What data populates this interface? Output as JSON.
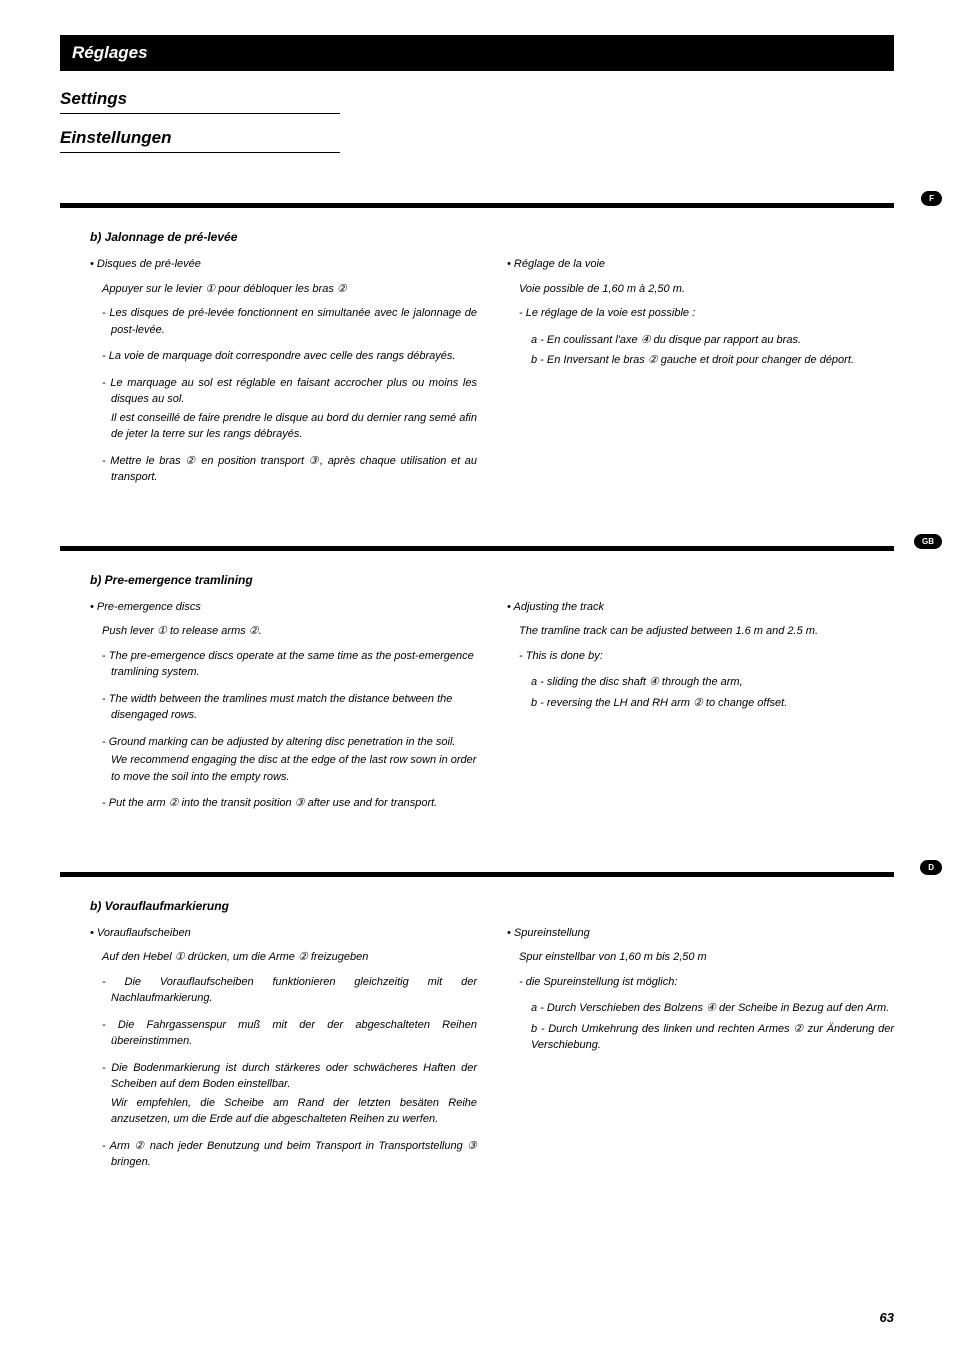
{
  "headers": {
    "main": "Réglages",
    "sub1": "Settings",
    "sub2": "Einstellungen"
  },
  "langTabs": {
    "fr": "F",
    "gb": "GB",
    "de": "D"
  },
  "pageNumber": "63",
  "french": {
    "title": "b) Jalonnage de pré-levée",
    "left": {
      "main": "Disques de pré-levée",
      "intro": "Appuyer sur le levier ① pour débloquer les bras ②",
      "items": [
        "Les disques de pré-levée fonctionnent en simultanée avec le jalonnage de post-levée.",
        "La voie de marquage doit correspondre avec celle des rangs débrayés.",
        "Le marquage au sol est réglable en faisant accrocher plus ou moins les disques au sol.",
        "Mettre le bras ② en position transport ③, après chaque utilisation et au transport."
      ],
      "item3cont": "Il est conseillé de faire prendre le disque au bord du dernier rang semé afin de jeter la terre sur les rangs débrayés."
    },
    "right": {
      "main": "Réglage de la voie",
      "intro": "Voie possible de 1,60 m à 2,50 m.",
      "items": [
        "Le réglage de la voie est possible :"
      ],
      "subs": [
        "a - En coulissant l'axe  ④ du disque par rapport au bras.",
        "b - En Inversant le bras ② gauche et droit pour changer de déport."
      ]
    }
  },
  "english": {
    "title": "b) Pre-emergence tramlining",
    "left": {
      "main": "Pre-emergence discs",
      "intro": "Push lever ① to release arms ②.",
      "items": [
        "The pre-emergence discs operate at the same time as the post-emergence tramlining system.",
        "The width between the tramlines must match the distance between the disengaged rows.",
        "Ground marking can be adjusted by altering disc penetration in the soil.",
        "Put the arm ② into the transit position ③ after use and for transport."
      ],
      "item3cont": "We recommend engaging the disc at the edge of the last row sown in order to move the soil into the empty rows."
    },
    "right": {
      "main": "Adjusting the track",
      "intro": "The tramline track can be adjusted between 1.6 m and 2.5  m.",
      "items": [
        "This is done by:"
      ],
      "subs": [
        "a - sliding the disc shaft ④ through the arm,",
        "b - reversing the LH and RH arm ② to change offset."
      ]
    }
  },
  "german": {
    "title": "b) Vorauflaufmarkierung",
    "left": {
      "main": "Vorauflaufscheiben",
      "intro": "Auf den Hebel ① drücken, um die Arme ② freizugeben",
      "items": [
        "Die Vorauflaufscheiben funktionieren gleichzeitig mit der Nachlaufmarkierung.",
        "Die Fahrgassenspur muß mit der der abgeschalteten Reihen übereinstimmen.",
        "Die Bodenmarkierung ist durch stärkeres oder schwächeres Haften der Scheiben auf dem Boden einstellbar.",
        "Arm ② nach jeder Benutzung und beim Transport in Transportstellung ③ bringen."
      ],
      "item3cont": "Wir empfehlen, die Scheibe am Rand der letzten besäten Reihe anzusetzen, um die Erde auf die abgeschalteten Reihen zu werfen."
    },
    "right": {
      "main": "Spureinstellung",
      "intro": "Spur einstellbar von 1,60 m bis 2,50 m",
      "items": [
        "die Spureinstellung ist möglich:"
      ],
      "subs": [
        "a - Durch Verschieben des Bolzens ④ der Scheibe in Bezug auf den Arm.",
        "b - Durch Umkehrung des linken und rechten Armes ② zur Änderung der Verschiebung."
      ]
    }
  }
}
